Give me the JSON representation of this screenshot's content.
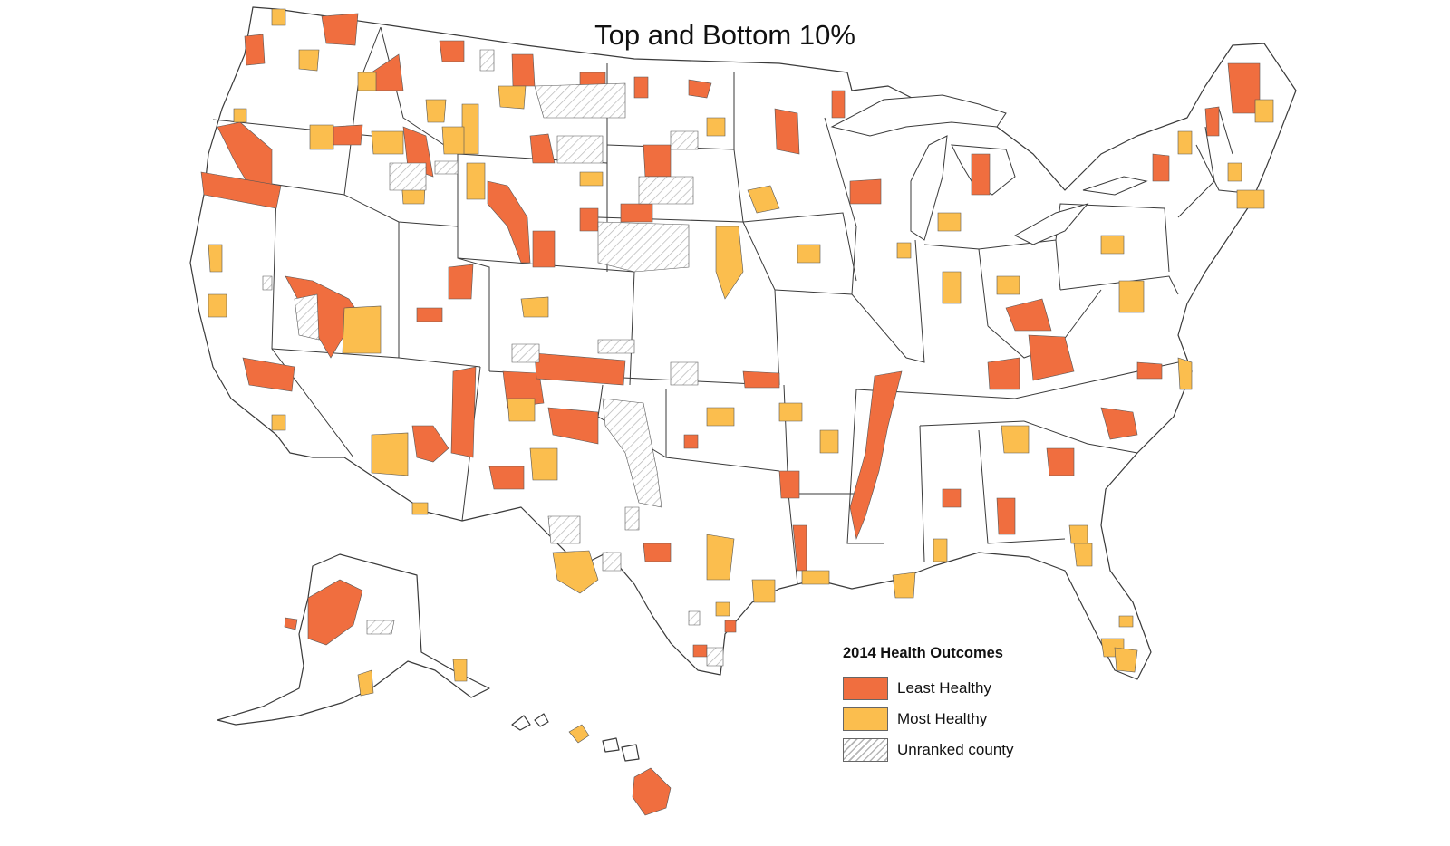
{
  "title": "Top and Bottom 10%",
  "legend": {
    "title": "2014 Health Outcomes",
    "items": [
      {
        "label": "Least Healthy",
        "color": "#f06e3f",
        "pattern": "solid"
      },
      {
        "label": "Most Healthy",
        "color": "#fbbe4e",
        "pattern": "solid"
      },
      {
        "label": "Unranked county",
        "color": "#ffffff",
        "pattern": "hatch"
      }
    ]
  },
  "colors": {
    "least": "#f06e3f",
    "most": "#fbbe4e",
    "unranked_hatch": "#b5b5b5",
    "border": "#3a3a3a"
  }
}
